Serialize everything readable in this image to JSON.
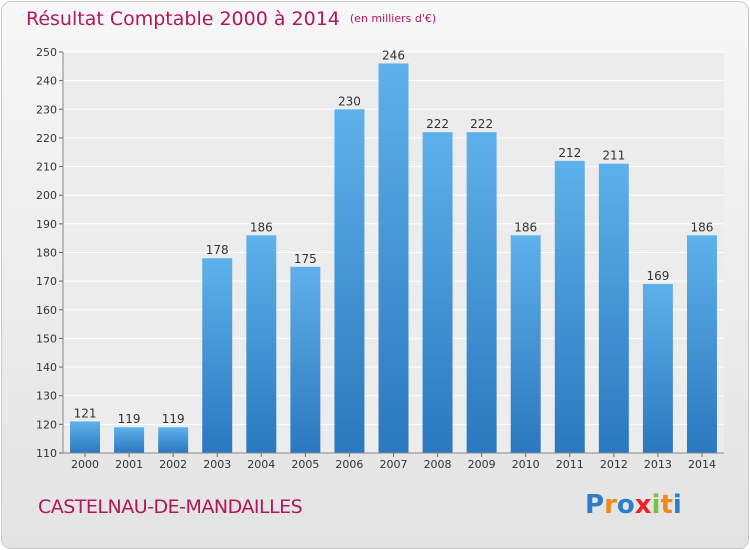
{
  "chart_data": {
    "type": "bar",
    "title": "Résultat Comptable 2000 à 2014",
    "subtitle": "(en milliers d'€)",
    "categories": [
      "2000",
      "2001",
      "2002",
      "2003",
      "2004",
      "2005",
      "2006",
      "2007",
      "2008",
      "2009",
      "2010",
      "2011",
      "2012",
      "2013",
      "2014"
    ],
    "values": [
      121,
      119,
      119,
      178,
      186,
      175,
      230,
      246,
      222,
      222,
      186,
      212,
      211,
      169,
      186
    ],
    "ylim": [
      110,
      250
    ],
    "yticks": [
      110,
      120,
      130,
      140,
      150,
      160,
      170,
      180,
      190,
      200,
      210,
      220,
      230,
      240,
      250
    ],
    "grid": true,
    "bar_color": "#3b8fd6"
  },
  "footer": {
    "commune": "CASTELNAU-DE-MANDAILLES",
    "logo": [
      "P",
      "r",
      "o",
      "x",
      "i",
      "t",
      "i"
    ],
    "logo_colors": [
      "#2d7ec8",
      "#f08a1c",
      "#2d7ec8",
      "#e8232a",
      "#7cc242",
      "#f08a1c",
      "#2d7ec8"
    ]
  }
}
